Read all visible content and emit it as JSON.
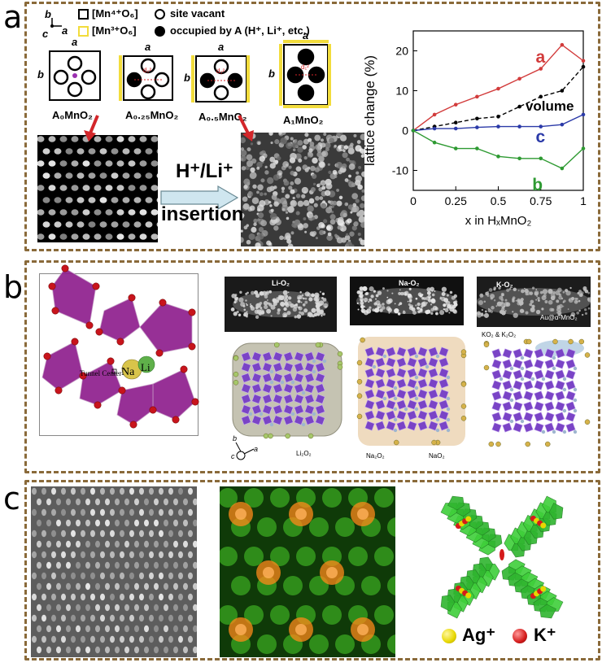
{
  "labels": {
    "a": "a",
    "b": "b",
    "c": "c"
  },
  "panel_a": {
    "axes_b": "b",
    "axes_c": "c",
    "axes_a": "a",
    "legend_mn4": "[Mn⁴⁺O₆]",
    "legend_mn3": "[Mn³⁺O₆]",
    "legend_vacant": "site vacant",
    "legend_occupied": "occupied by A (H⁺, Li⁺, etc.)",
    "cell_a": "a",
    "cell_b": "b",
    "d_label": "d₁²",
    "d_label2": "d₂²",
    "structures": [
      "A₀MnO₂",
      "A₀.₂₅MnO₂",
      "A₀.₅MnO₂",
      "A₁MnO₂"
    ],
    "arrow_line1": "H⁺/Li⁺",
    "arrow_line2": "insertion"
  },
  "chart_data": {
    "type": "line",
    "xlabel": "x in HₓMnO₂",
    "ylabel": "lattice change (%)",
    "xlim": [
      0,
      1
    ],
    "ylim": [
      -15,
      25
    ],
    "xticks": [
      "0",
      "0.25",
      "0.5",
      "0.75",
      "1"
    ],
    "yticks": [
      "20",
      "10",
      "0",
      "-10"
    ],
    "series": [
      {
        "name": "a",
        "color": "#d23b3b",
        "x": [
          0,
          0.125,
          0.25,
          0.375,
          0.5,
          0.625,
          0.75,
          0.875,
          1
        ],
        "y": [
          0,
          4,
          6.5,
          8.5,
          10.5,
          13,
          15.5,
          21.5,
          17.5
        ]
      },
      {
        "name": "volume",
        "color": "#000000",
        "x": [
          0,
          0.125,
          0.25,
          0.375,
          0.5,
          0.625,
          0.75,
          0.875,
          1
        ],
        "y": [
          0,
          1,
          2,
          3,
          3.5,
          6,
          8.5,
          10,
          16
        ]
      },
      {
        "name": "c",
        "color": "#2b3aa8",
        "x": [
          0,
          0.125,
          0.25,
          0.375,
          0.5,
          0.625,
          0.75,
          0.875,
          1
        ],
        "y": [
          0,
          0.5,
          0.5,
          0.8,
          1,
          1,
          1,
          1.5,
          4
        ]
      },
      {
        "name": "b",
        "color": "#2e9a32",
        "x": [
          0,
          0.125,
          0.25,
          0.375,
          0.5,
          0.625,
          0.75,
          0.875,
          1
        ],
        "y": [
          0,
          -3,
          -4.5,
          -4.5,
          -6.5,
          -7,
          -7,
          -9.5,
          -4.5
        ]
      }
    ]
  },
  "panel_b": {
    "tunnel_center": "Tunnel Center",
    "na": "Na",
    "li": "Li",
    "img_labels": [
      "Li-O₂",
      "Na-O₂",
      "K-O₂"
    ],
    "au_label": "Au@α-MnO₂",
    "ko_label": "KO₂ & K₂O₂",
    "li2o2": "Li₂O₂",
    "na2o2": "Na₂O₂",
    "nao2": "NaO₂",
    "axis_b": "b",
    "axis_c": "c",
    "axis_a": "a"
  },
  "panel_c": {
    "ag_label": "Ag⁺",
    "k_label": "K⁺"
  }
}
